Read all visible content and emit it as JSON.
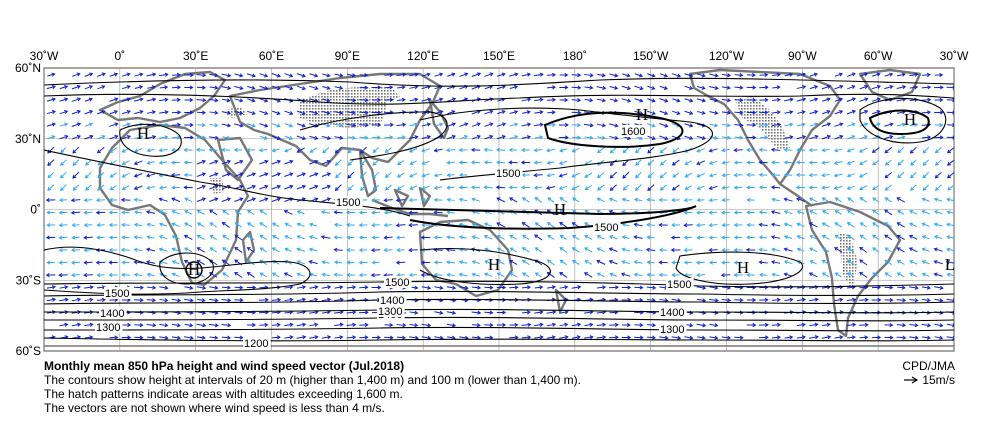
{
  "map": {
    "lon_labels": [
      "30˚W",
      "0˚",
      "30˚E",
      "60˚E",
      "90˚E",
      "120˚E",
      "150˚E",
      "180˚",
      "150˚W",
      "120˚W",
      "90˚W",
      "60˚W",
      "30˚W"
    ],
    "lat_labels": [
      "60˚N",
      "30˚N",
      "0˚",
      "30˚S",
      "60˚S"
    ],
    "pressure_labels": [
      {
        "text": "H",
        "kind": "high"
      },
      {
        "text": "H",
        "kind": "high"
      },
      {
        "text": "H",
        "kind": "high"
      },
      {
        "text": "H",
        "kind": "high"
      },
      {
        "text": "H",
        "kind": "high"
      },
      {
        "text": "H",
        "kind": "high"
      },
      {
        "text": "L",
        "kind": "low"
      },
      {
        "text": "H",
        "kind": "high"
      },
      {
        "text": "H",
        "kind": "high"
      }
    ],
    "contour_labels": [
      "1600",
      "1500",
      "1500",
      "1500",
      "1500",
      "1500",
      "1500",
      "1400",
      "1400",
      "1400",
      "1400",
      "1300",
      "1300",
      "1300",
      "1200"
    ],
    "colors": {
      "vectors_weak": "#33aaee",
      "vectors_strong": "#1122cc",
      "contour": "#000000",
      "coast": "#777777"
    }
  },
  "caption": {
    "title": "Monthly mean 850 hPa height and wind speed vector (Jul.2018)",
    "line1": "The contours show height at intervals of 20 m (higher than 1,400 m) and 100 m (lower than 1,400 m).",
    "line2": "The hatch patterns indicate areas with altitudes exceeding 1,600 m.",
    "line3": "The vectors are not shown where wind speed is less than 4 m/s."
  },
  "credit": {
    "source": "CPD/JMA",
    "reference_vector": "15m/s",
    "arrow_icon": "reference-arrow-icon"
  }
}
